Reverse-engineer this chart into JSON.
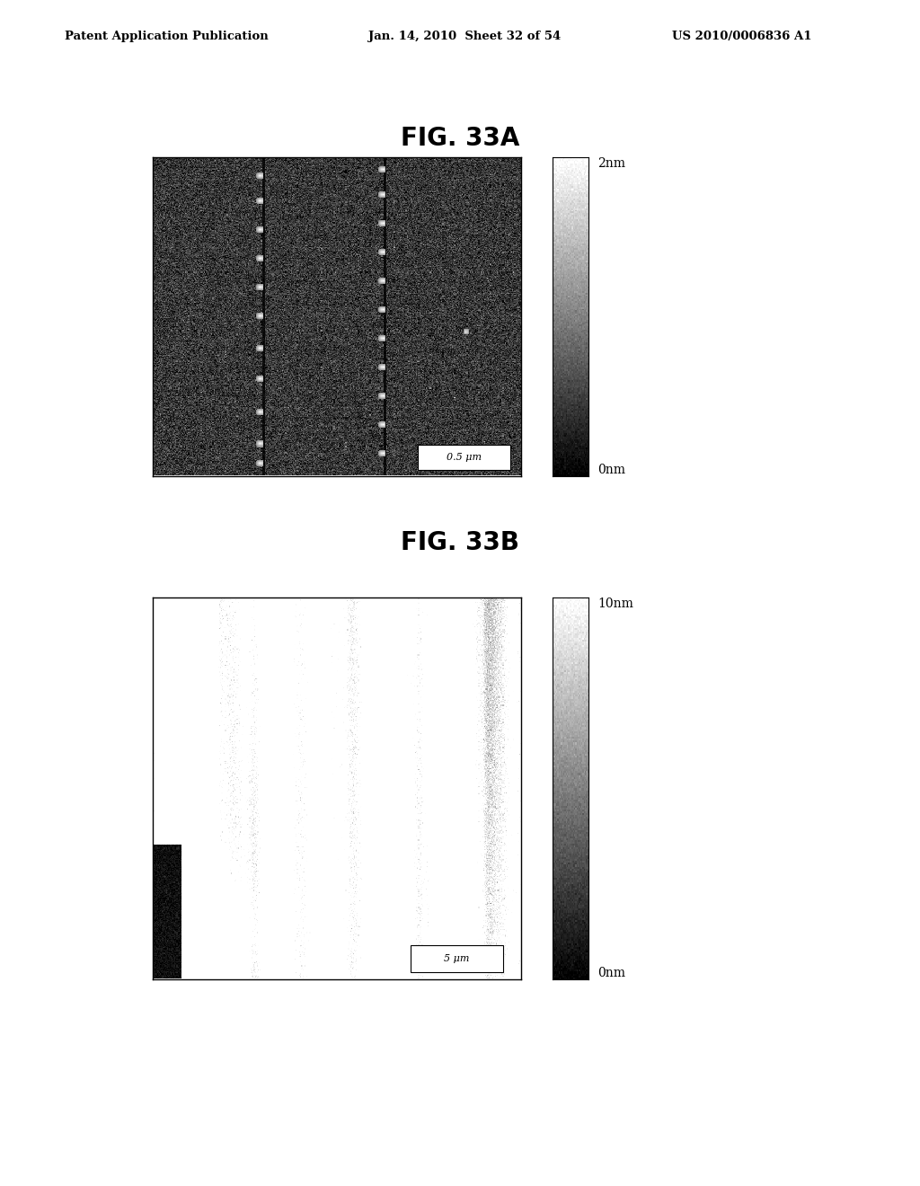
{
  "title_a": "FIG. 33A",
  "title_b": "FIG. 33B",
  "header_left": "Patent Application Publication",
  "header_center": "Jan. 14, 2010  Sheet 32 of 54",
  "header_right": "US 2010/0006836 A1",
  "colorbar_a_top": "2nm",
  "colorbar_a_bottom": "0nm",
  "colorbar_b_top": "10nm",
  "colorbar_b_bottom": "0nm",
  "scale_a": "0.5 μm",
  "scale_b": "5 μm",
  "bg_color": "#ffffff"
}
